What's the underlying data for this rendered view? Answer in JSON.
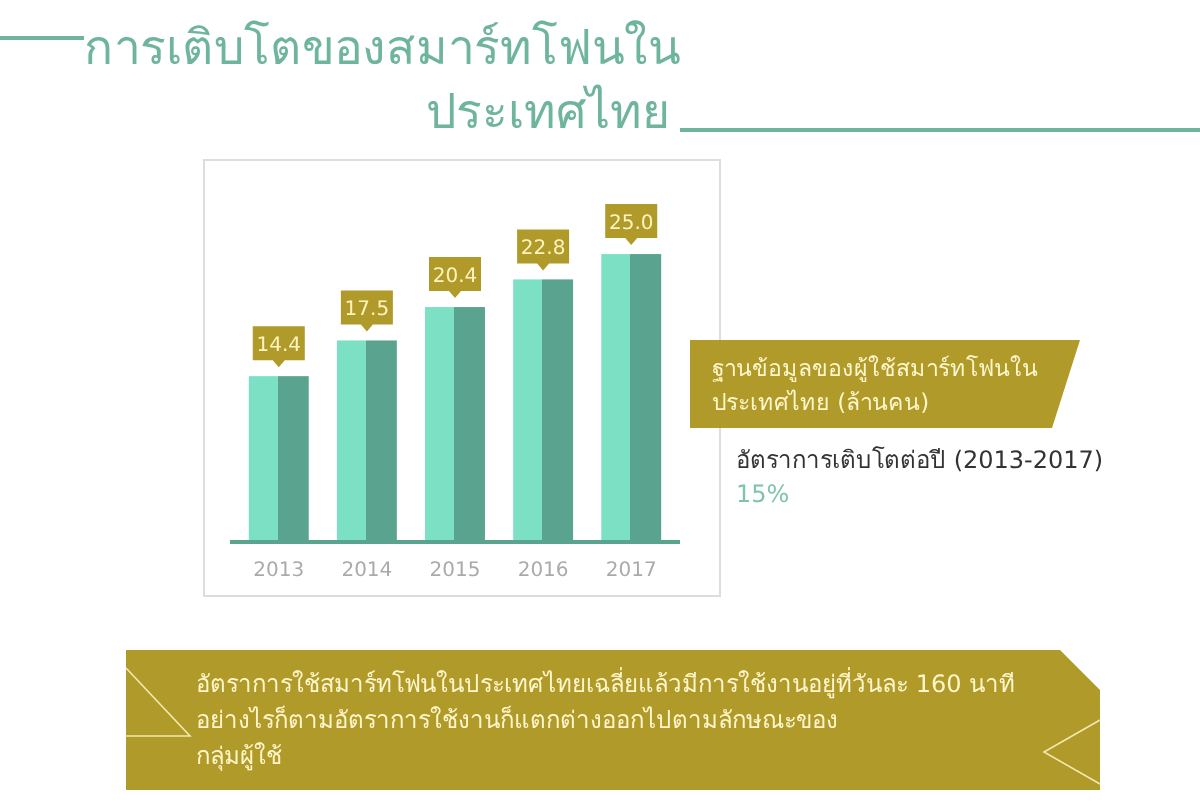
{
  "chart_data": {
    "type": "bar",
    "title": "การเติบโตของสมาร์ทโฟนใน\nประเทศไทย",
    "categories": [
      "2013",
      "2014",
      "2015",
      "2016",
      "2017"
    ],
    "values": [
      14.4,
      17.5,
      20.4,
      22.8,
      25.0
    ],
    "value_labels": [
      "14.4",
      "17.5",
      "20.4",
      "22.8",
      "25.0"
    ],
    "color": "#5aa38e",
    "annotations": [
      "ฐานข้อมูลของผู้ใช้สมาร์ทโฟนใน\nประเทศไทย (ล้านคน)",
      "อัตราการเติบโตต่อปี (2013-2017)",
      "15%",
      "อัตราการใช้สมาร์ทโฟนในประเทศไทยเฉลี่ยแล้วมีการใช้งานอยู่ที่วันละ 160 นาที\nอย่างไรก็ตามอัตราการใช้งานก็แตกต่างออกไปตามลักษณะของ\nกลุ่มผู้ใช้"
    ]
  }
}
